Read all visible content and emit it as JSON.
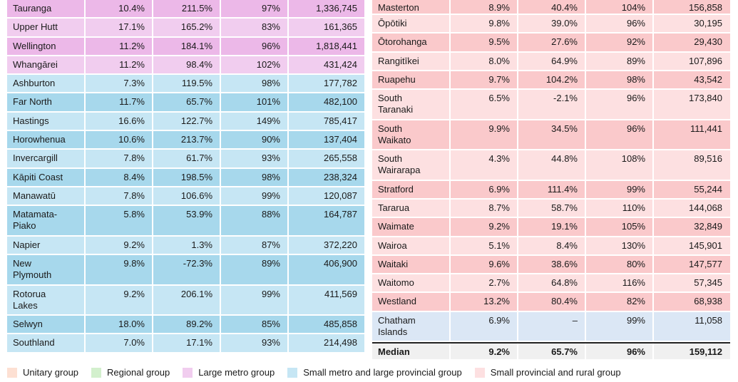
{
  "colors": {
    "large_metro": "#ecb8e8",
    "large_metro_alt": "#f1cdef",
    "small_metro": "#a7d8ec",
    "small_metro_alt": "#c6e6f4",
    "rural": "#fac9cb",
    "rural_alt": "#fde0e1",
    "chatham": "#dbe7f5",
    "median": "#efefef"
  },
  "left_rows": [
    {
      "name": "Tauranga",
      "v1": "10.4%",
      "v2": "211.5%",
      "v3": "97%",
      "v4": "1,336,745",
      "group": "large_metro",
      "size": 1
    },
    {
      "name": "Upper Hutt",
      "v1": "17.1%",
      "v2": "165.2%",
      "v3": "83%",
      "v4": "161,365",
      "group": "large_metro_alt",
      "size": 1
    },
    {
      "name": "Wellington",
      "v1": "11.2%",
      "v2": "184.1%",
      "v3": "96%",
      "v4": "1,818,441",
      "group": "large_metro",
      "size": 1
    },
    {
      "name": "Whangārei",
      "v1": "11.2%",
      "v2": "98.4%",
      "v3": "102%",
      "v4": "431,424",
      "group": "large_metro_alt",
      "size": 1
    },
    {
      "name": "Ashburton",
      "v1": "7.3%",
      "v2": "119.5%",
      "v3": "98%",
      "v4": "177,782",
      "group": "small_metro_alt",
      "size": 1
    },
    {
      "name": "Far North",
      "v1": "11.7%",
      "v2": "65.7%",
      "v3": "101%",
      "v4": "482,100",
      "group": "small_metro",
      "size": 1
    },
    {
      "name": "Hastings",
      "v1": "16.6%",
      "v2": "122.7%",
      "v3": "149%",
      "v4": "785,417",
      "group": "small_metro_alt",
      "size": 1
    },
    {
      "name": "Horowhenua",
      "v1": "10.6%",
      "v2": "213.7%",
      "v3": "90%",
      "v4": "137,404",
      "group": "small_metro",
      "size": 1
    },
    {
      "name": "Invercargill",
      "v1": "7.8%",
      "v2": "61.7%",
      "v3": "93%",
      "v4": "265,558",
      "group": "small_metro_alt",
      "size": 1
    },
    {
      "name": "Kāpiti Coast",
      "v1": "8.4%",
      "v2": "198.5%",
      "v3": "98%",
      "v4": "238,324",
      "group": "small_metro",
      "size": 1
    },
    {
      "name": "Manawatū",
      "v1": "7.8%",
      "v2": "106.6%",
      "v3": "99%",
      "v4": "120,087",
      "group": "small_metro_alt",
      "size": 1
    },
    {
      "name": "Matamata-\nPiako",
      "v1": "5.8%",
      "v2": "53.9%",
      "v3": "88%",
      "v4": "164,787",
      "group": "small_metro",
      "size": 2
    },
    {
      "name": "Napier",
      "v1": "9.2%",
      "v2": "1.3%",
      "v3": "87%",
      "v4": "372,220",
      "group": "small_metro_alt",
      "size": 1
    },
    {
      "name": "New\nPlymouth",
      "v1": "9.8%",
      "v2": "-72.3%",
      "v3": "89%",
      "v4": "406,900",
      "group": "small_metro",
      "size": 2
    },
    {
      "name": "Rotorua\nLakes",
      "v1": "9.2%",
      "v2": "206.1%",
      "v3": "99%",
      "v4": "411,569",
      "group": "small_metro_alt",
      "size": 2
    },
    {
      "name": "Selwyn",
      "v1": "18.0%",
      "v2": "89.2%",
      "v3": "85%",
      "v4": "485,858",
      "group": "small_metro",
      "size": 1
    },
    {
      "name": "Southland",
      "v1": "7.0%",
      "v2": "17.1%",
      "v3": "93%",
      "v4": "214,498",
      "group": "small_metro_alt",
      "size": 1
    }
  ],
  "right_rows": [
    {
      "name": "Masterton",
      "v1": "8.9%",
      "v2": "40.4%",
      "v3": "104%",
      "v4": "156,858",
      "group": "rural",
      "size": 0
    },
    {
      "name": "Ōpōtiki",
      "v1": "9.8%",
      "v2": "39.0%",
      "v3": "96%",
      "v4": "30,195",
      "group": "rural_alt",
      "size": 1
    },
    {
      "name": "Ōtorohanga",
      "v1": "9.5%",
      "v2": "27.6%",
      "v3": "92%",
      "v4": "29,430",
      "group": "rural",
      "size": 1
    },
    {
      "name": "Rangitīkei",
      "v1": "8.0%",
      "v2": "64.9%",
      "v3": "89%",
      "v4": "107,896",
      "group": "rural_alt",
      "size": 1
    },
    {
      "name": "Ruapehu",
      "v1": "9.7%",
      "v2": "104.2%",
      "v3": "98%",
      "v4": "43,542",
      "group": "rural",
      "size": 1
    },
    {
      "name": "South\nTaranaki",
      "v1": "6.5%",
      "v2": "-2.1%",
      "v3": "96%",
      "v4": "173,840",
      "group": "rural_alt",
      "size": 2
    },
    {
      "name": "South\nWaikato",
      "v1": "9.9%",
      "v2": "34.5%",
      "v3": "96%",
      "v4": "111,441",
      "group": "rural",
      "size": 2
    },
    {
      "name": "South\nWairarapa",
      "v1": "4.3%",
      "v2": "44.8%",
      "v3": "108%",
      "v4": "89,516",
      "group": "rural_alt",
      "size": 2
    },
    {
      "name": "Stratford",
      "v1": "6.9%",
      "v2": "111.4%",
      "v3": "99%",
      "v4": "55,244",
      "group": "rural",
      "size": 1
    },
    {
      "name": "Tararua",
      "v1": "8.7%",
      "v2": "58.7%",
      "v3": "110%",
      "v4": "144,068",
      "group": "rural_alt",
      "size": 1
    },
    {
      "name": "Waimate",
      "v1": "9.2%",
      "v2": "19.1%",
      "v3": "105%",
      "v4": "32,849",
      "group": "rural",
      "size": 1
    },
    {
      "name": "Wairoa",
      "v1": "5.1%",
      "v2": "8.4%",
      "v3": "130%",
      "v4": "145,901",
      "group": "rural_alt",
      "size": 1
    },
    {
      "name": "Waitaki",
      "v1": "9.6%",
      "v2": "38.6%",
      "v3": "80%",
      "v4": "147,577",
      "group": "rural",
      "size": 1
    },
    {
      "name": "Waitomo",
      "v1": "2.7%",
      "v2": "64.8%",
      "v3": "116%",
      "v4": "57,345",
      "group": "rural_alt",
      "size": 1
    },
    {
      "name": "Westland",
      "v1": "13.2%",
      "v2": "80.4%",
      "v3": "82%",
      "v4": "68,938",
      "group": "rural",
      "size": 1
    },
    {
      "name": "Chatham\nIslands",
      "v1": "6.9%",
      "v2": "–",
      "v3": "99%",
      "v4": "11,058",
      "group": "chatham",
      "size": 2
    }
  ],
  "median": {
    "name": "Median",
    "v1": "9.2%",
    "v2": "65.7%",
    "v3": "96%",
    "v4": "159,112"
  },
  "legend": [
    {
      "label": "Unitary group",
      "color": "#fde0d3"
    },
    {
      "label": "Regional group",
      "color": "#d3f0cd"
    },
    {
      "label": "Large metro group",
      "color": "#f1cdef"
    },
    {
      "label": "Small metro and large provincial group",
      "color": "#c6e6f4"
    },
    {
      "label": "Small provincial and rural group",
      "color": "#fde0e1"
    }
  ]
}
